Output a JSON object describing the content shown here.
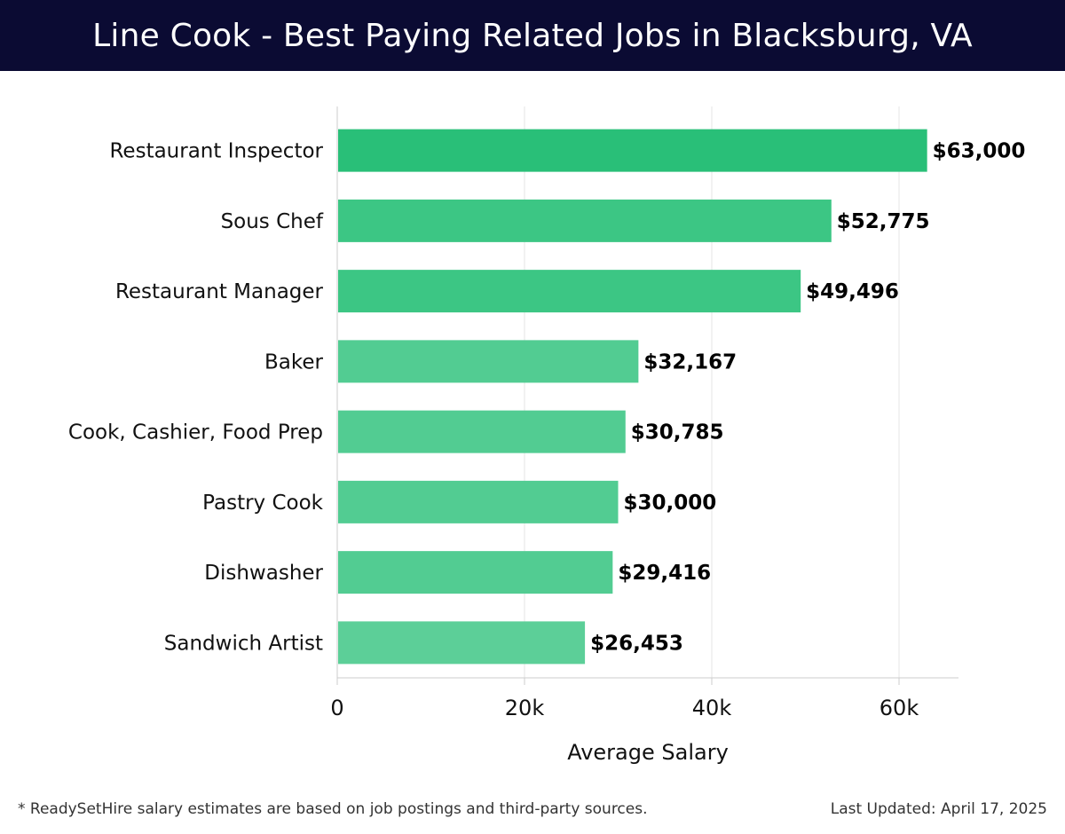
{
  "header": {
    "title": "Line Cook - Best Paying Related Jobs in Blacksburg, VA"
  },
  "footer": {
    "note": "* ReadySetHire salary estimates are based on job postings and third-party sources.",
    "last_updated": "Last Updated: April 17, 2025"
  },
  "colors": {
    "header_bg": "#0b0b33",
    "bar_top": "#29bf78",
    "bar_high": "#3cc684",
    "bar_mid": "#52cc92",
    "bar_low": "#5ccf98",
    "grid": "#e5e5e5",
    "axis": "#cccccc"
  },
  "chart_data": {
    "type": "bar",
    "orientation": "horizontal",
    "categories": [
      "Restaurant Inspector",
      "Sous Chef",
      "Restaurant Manager",
      "Baker",
      "Cook, Cashier, Food Prep",
      "Pastry Cook",
      "Dishwasher",
      "Sandwich Artist"
    ],
    "values": [
      63000,
      52775,
      49496,
      32167,
      30785,
      30000,
      29416,
      26453
    ],
    "value_labels": [
      "$63,000",
      "$52,775",
      "$49,496",
      "$32,167",
      "$30,785",
      "$30,000",
      "$29,416",
      "$26,453"
    ],
    "xlabel": "Average Salary",
    "ylabel": "",
    "xlim": [
      0,
      66000
    ],
    "xticks": [
      0,
      20000,
      40000,
      60000
    ],
    "xtick_labels": [
      "0",
      "20k",
      "40k",
      "60k"
    ],
    "grid": "vertical"
  }
}
